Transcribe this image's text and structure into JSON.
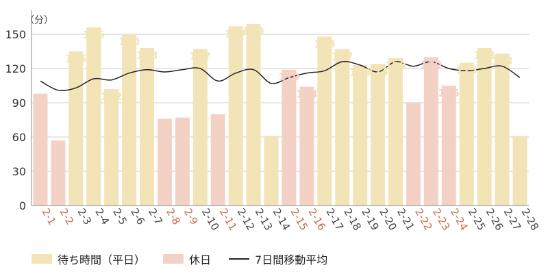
{
  "chart_data": {
    "type": "bar",
    "unit_label": "（分）",
    "categories": [
      "2-1",
      "2-2",
      "2-3",
      "2-4",
      "2-5",
      "2-6",
      "2-7",
      "2-8",
      "2-9",
      "2-10",
      "2-11",
      "2-12",
      "2-13",
      "2-14",
      "2-15",
      "2-16",
      "2-17",
      "2-18",
      "2-19",
      "2-20",
      "2-21",
      "2-22",
      "2-23",
      "2-24",
      "2-25",
      "2-26",
      "2-27",
      "2-28"
    ],
    "values": [
      98,
      57,
      135,
      156,
      102,
      150,
      138,
      76,
      77,
      137,
      80,
      157,
      159,
      61,
      119,
      104,
      148,
      137,
      123,
      124,
      129,
      90,
      130,
      105,
      125,
      138,
      133,
      61
    ],
    "holiday": [
      true,
      true,
      false,
      false,
      false,
      false,
      false,
      true,
      true,
      false,
      true,
      false,
      false,
      false,
      true,
      true,
      false,
      false,
      false,
      false,
      false,
      true,
      true,
      true,
      false,
      false,
      false,
      false
    ],
    "moving_average": [
      109,
      101,
      103,
      111,
      110,
      116,
      119,
      117,
      119,
      120,
      109,
      116,
      119,
      107,
      112,
      116,
      118,
      126,
      123,
      117,
      126,
      122,
      126,
      120,
      118,
      120,
      122,
      112
    ],
    "ylim": [
      0,
      165
    ],
    "yticks": [
      0,
      30,
      60,
      90,
      120,
      150
    ],
    "grid": true,
    "colors": {
      "weekday_bar": "#f2e4b6",
      "holiday_bar": "#f3d2c5",
      "weekday_label": "#f2e4b6",
      "holiday_label": "#f3d2c5",
      "weekday_tick": "#444444",
      "holiday_tick": "#c76a4e",
      "line": "#222222",
      "grid": "#cccccc"
    }
  },
  "legend": {
    "weekday": "待ち時間（平日）",
    "holiday": "休日",
    "moving_average": "7日間移動平均"
  }
}
